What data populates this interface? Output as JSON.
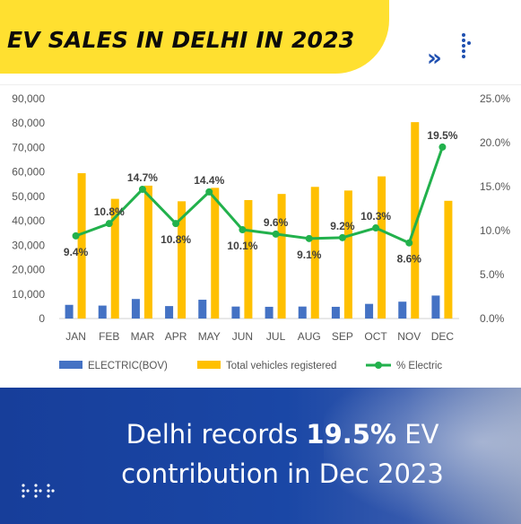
{
  "header": {
    "title": "EV SALES IN DELHI IN 2023",
    "chevron": "»"
  },
  "chart_data": {
    "type": "bar",
    "categories": [
      "JAN",
      "FEB",
      "MAR",
      "APR",
      "MAY",
      "JUN",
      "JUL",
      "AUG",
      "SEP",
      "OCT",
      "NOV",
      "DEC"
    ],
    "series": [
      {
        "name": "ELECTRIC(BOV)",
        "type": "bar",
        "axis": "left",
        "values": [
          5600,
          5300,
          8000,
          5100,
          7700,
          4900,
          4800,
          4900,
          4800,
          6000,
          6900,
          9400
        ]
      },
      {
        "name": "Total vehicles registered",
        "type": "bar",
        "axis": "left",
        "values": [
          59500,
          49000,
          54400,
          48000,
          53500,
          48500,
          51000,
          53900,
          52400,
          58200,
          80400,
          48200
        ]
      },
      {
        "name": "% Electric",
        "type": "line",
        "axis": "right",
        "values": [
          9.4,
          10.8,
          14.7,
          10.8,
          14.4,
          10.1,
          9.6,
          9.1,
          9.2,
          10.3,
          8.6,
          19.5
        ],
        "labels": [
          "9.4%",
          "10.8%",
          "14.7%",
          "10.8%",
          "14.4%",
          "10.1%",
          "9.6%",
          "9.1%",
          "9.2%",
          "10.3%",
          "8.6%",
          "19.5%"
        ]
      }
    ],
    "left_axis": {
      "ylim": [
        0,
        90000
      ],
      "ticks": [
        "0",
        "10,000",
        "20,000",
        "30,000",
        "40,000",
        "50,000",
        "60,000",
        "70,000",
        "80,000",
        "90,000"
      ]
    },
    "right_axis": {
      "ylim": [
        0,
        25
      ],
      "ticks": [
        "0.0%",
        "5.0%",
        "10.0%",
        "15.0%",
        "20.0%",
        "25.0%"
      ]
    },
    "legend_position": "bottom",
    "grid": false,
    "colors": {
      "electric": "#4472C4",
      "total": "#FFC000",
      "percent": "#22B14C"
    }
  },
  "footer": {
    "headline_prefix": "Delhi records ",
    "headline_bold": "19.5%",
    "headline_suffix": " EV contribution in Dec 2023"
  }
}
